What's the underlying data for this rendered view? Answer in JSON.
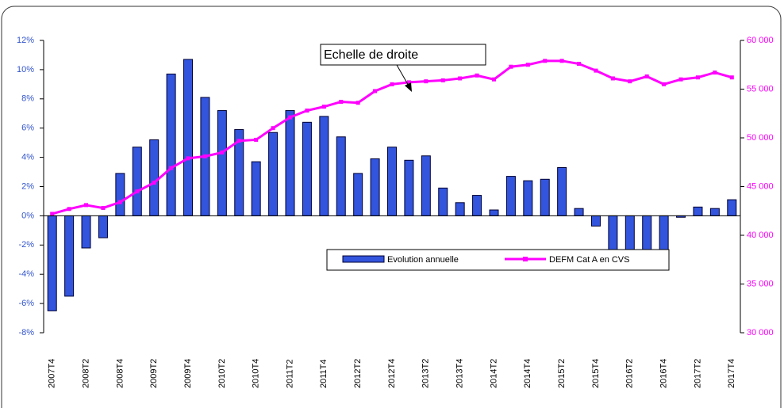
{
  "chart_data": {
    "type": "bar",
    "annotation": "Echelle de droite",
    "categories": [
      "2007T4",
      null,
      "2008T2",
      null,
      "2008T4",
      null,
      "2009T2",
      null,
      "2009T4",
      null,
      "2010T2",
      null,
      "2010T4",
      null,
      "2011T2",
      null,
      "2011T4",
      null,
      "2012T2",
      null,
      "2012T4",
      null,
      "2013T2",
      null,
      "2013T4",
      null,
      "2014T2",
      null,
      "2014T4",
      null,
      "2015T2",
      null,
      "2015T4",
      null,
      "2016T2",
      null,
      "2016T4",
      null,
      "2017T2",
      null,
      "2017T4"
    ],
    "series": [
      {
        "name": "Evolution annuelle",
        "type": "bar",
        "color": "#3355dd",
        "axis": "y",
        "values": [
          -6.5,
          -5.5,
          -2.2,
          -1.5,
          2.9,
          4.7,
          5.2,
          9.7,
          10.7,
          8.1,
          7.2,
          5.9,
          3.7,
          5.7,
          7.2,
          6.4,
          6.8,
          5.4,
          2.9,
          3.9,
          4.7,
          3.8,
          4.1,
          1.9,
          0.9,
          1.4,
          0.4,
          2.7,
          2.4,
          2.5,
          3.3,
          0.5,
          -0.7,
          -2.5,
          -2.5,
          -2.5,
          -2.5,
          -0.1,
          0.6,
          0.5,
          1.1
        ]
      },
      {
        "name": "DEFM Cat A en CVS",
        "type": "line",
        "color": "#ff00ff",
        "axis": "y2",
        "values": [
          42200,
          42700,
          43100,
          42800,
          43400,
          44500,
          45400,
          46900,
          47900,
          48100,
          48500,
          49700,
          49800,
          51000,
          52100,
          52800,
          53200,
          53700,
          53600,
          54800,
          55500,
          55700,
          55800,
          55900,
          56100,
          56400,
          56000,
          57300,
          57500,
          57900,
          57900,
          57600,
          56900,
          56100,
          55800,
          56300,
          55500,
          56000,
          56200,
          56700,
          56200
        ]
      }
    ],
    "ylim": [
      -8,
      12
    ],
    "yticks": [
      {
        "value": -8,
        "label": "-8%"
      },
      {
        "value": -6,
        "label": "-6%"
      },
      {
        "value": -4,
        "label": "-4%"
      },
      {
        "value": -2,
        "label": "-2%"
      },
      {
        "value": 0,
        "label": "0%"
      },
      {
        "value": 2,
        "label": "2%"
      },
      {
        "value": 4,
        "label": "4%"
      },
      {
        "value": 6,
        "label": "6%"
      },
      {
        "value": 8,
        "label": "8%"
      },
      {
        "value": 10,
        "label": "10%"
      },
      {
        "value": 12,
        "label": "12%"
      }
    ],
    "y2lim": [
      30000,
      60000
    ],
    "y2ticks": [
      {
        "value": 30000,
        "label": "30 000"
      },
      {
        "value": 35000,
        "label": "35 000"
      },
      {
        "value": 40000,
        "label": "40 000"
      },
      {
        "value": 45000,
        "label": "45 000"
      },
      {
        "value": 50000,
        "label": "50 000"
      },
      {
        "value": 55000,
        "label": "55 000"
      },
      {
        "value": 60000,
        "label": "60 000"
      }
    ],
    "left_axis_color": "#3355cc",
    "right_axis_color": "#ff00ff"
  }
}
